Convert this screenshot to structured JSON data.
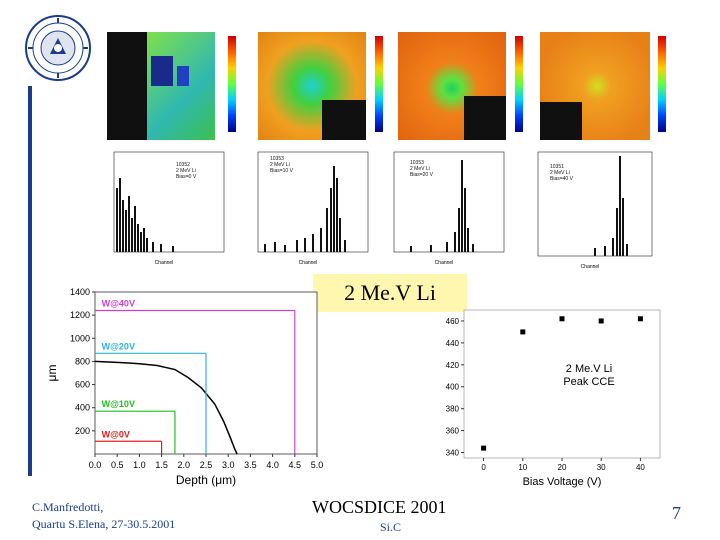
{
  "slide": {
    "title_box": "2 Me.V Li",
    "footer_left_line1": "C.Manfredotti,",
    "footer_left_line2": "Quartu S.Elena, 27-30.5.2001",
    "footer_center_line1": "WOCSDICE 2001",
    "footer_center_line2": "Si.C",
    "page_number": "7",
    "accent_color": "#1a3c8c"
  },
  "maps": [
    {
      "id": "map-1",
      "theme": "green",
      "icon": "map-pattern"
    },
    {
      "id": "map-2",
      "theme": "green-orange",
      "icon": "map-pattern"
    },
    {
      "id": "map-3",
      "theme": "orange",
      "icon": "map-pattern"
    },
    {
      "id": "map-4",
      "theme": "orange",
      "icon": "map-pattern"
    }
  ],
  "histograms": [
    {
      "label": "10352\n2 MeV Li\nBias=0 V",
      "xlabel": "Channel"
    },
    {
      "label": "10353\n2 MeV Li\nBias=10 V",
      "xlabel": "Channel"
    },
    {
      "label": "10353\n2 MeV Li\nBias=20 V",
      "xlabel": "Channel"
    },
    {
      "label": "10351\n2 MeV Li\nBias=40 V",
      "xlabel": "Channel"
    }
  ],
  "chart_data": [
    {
      "type": "line",
      "title": "",
      "xlabel": "Depth (μm)",
      "ylabel": "μm",
      "xlim": [
        0.0,
        5.0
      ],
      "ylim": [
        0,
        1400
      ],
      "xticks": [
        "0.0",
        "0.5",
        "1.0",
        "1.5",
        "2.0",
        "2.5",
        "3.0",
        "3.5",
        "4.0",
        "4.5",
        "5.0"
      ],
      "yticks": [
        "200",
        "400",
        "600",
        "800",
        "1000",
        "1200",
        "1400"
      ],
      "series": [
        {
          "name": "profile",
          "x": [
            0,
            0.3,
            0.6,
            1.0,
            1.4,
            1.8,
            2.1,
            2.4,
            2.7,
            2.9,
            3.05,
            3.15,
            3.2
          ],
          "y": [
            800,
            795,
            790,
            780,
            765,
            730,
            660,
            570,
            430,
            280,
            140,
            40,
            0
          ]
        }
      ],
      "annotations": [
        {
          "text": "W@40V",
          "depth": 4.5,
          "value": 1240
        },
        {
          "text": "W@20V",
          "depth": 2.5,
          "value": 870
        },
        {
          "text": "W@10V",
          "depth": 1.8,
          "value": 370
        },
        {
          "text": "W@0V",
          "depth": 1.5,
          "value": 110
        }
      ]
    },
    {
      "type": "scatter",
      "title": "",
      "legend_text": "2 Me.V Li\nPeak CCE",
      "xlabel": "Bias Voltage (V)",
      "ylabel": "",
      "xlim": [
        -5,
        45
      ],
      "ylim": [
        335,
        470
      ],
      "xticks": [
        "0",
        "10",
        "20",
        "30",
        "40"
      ],
      "yticks": [
        "340",
        "360",
        "380",
        "400",
        "420",
        "440",
        "460"
      ],
      "series": [
        {
          "name": "Peak CCE",
          "x": [
            0,
            10,
            20,
            30,
            40
          ],
          "y": [
            344,
            450,
            462,
            460,
            462
          ]
        }
      ]
    }
  ]
}
